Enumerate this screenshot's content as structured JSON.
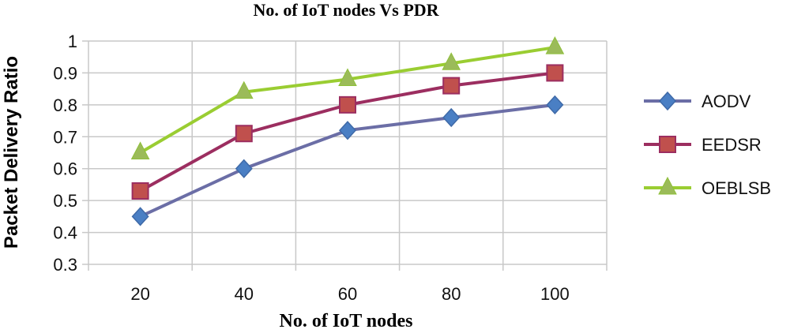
{
  "chart_data": {
    "type": "line",
    "title": "No. of IoT nodes Vs PDR",
    "xlabel": "No. of IoT nodes",
    "ylabel": "Packet Delivery Ratio",
    "categories": [
      "20",
      "40",
      "60",
      "80",
      "100"
    ],
    "ylim": [
      0.3,
      1
    ],
    "yticks": [
      "0.3",
      "0.4",
      "0.5",
      "0.6",
      "0.7",
      "0.8",
      "0.9",
      "1"
    ],
    "grid": true,
    "legend_position": "right",
    "series": [
      {
        "name": "AODV",
        "values": [
          0.45,
          0.6,
          0.72,
          0.76,
          0.8
        ],
        "line_color": "#6b6ea6",
        "marker_color": "#4a7fc4",
        "marker": "diamond"
      },
      {
        "name": "EEDSR",
        "values": [
          0.53,
          0.71,
          0.8,
          0.86,
          0.9
        ],
        "line_color": "#9c2e60",
        "marker_color": "#c0504d",
        "marker": "square"
      },
      {
        "name": "OEBLSB",
        "values": [
          0.65,
          0.84,
          0.88,
          0.93,
          0.98
        ],
        "line_color": "#9acd32",
        "marker_color": "#9bbb59",
        "marker": "triangle"
      }
    ]
  }
}
